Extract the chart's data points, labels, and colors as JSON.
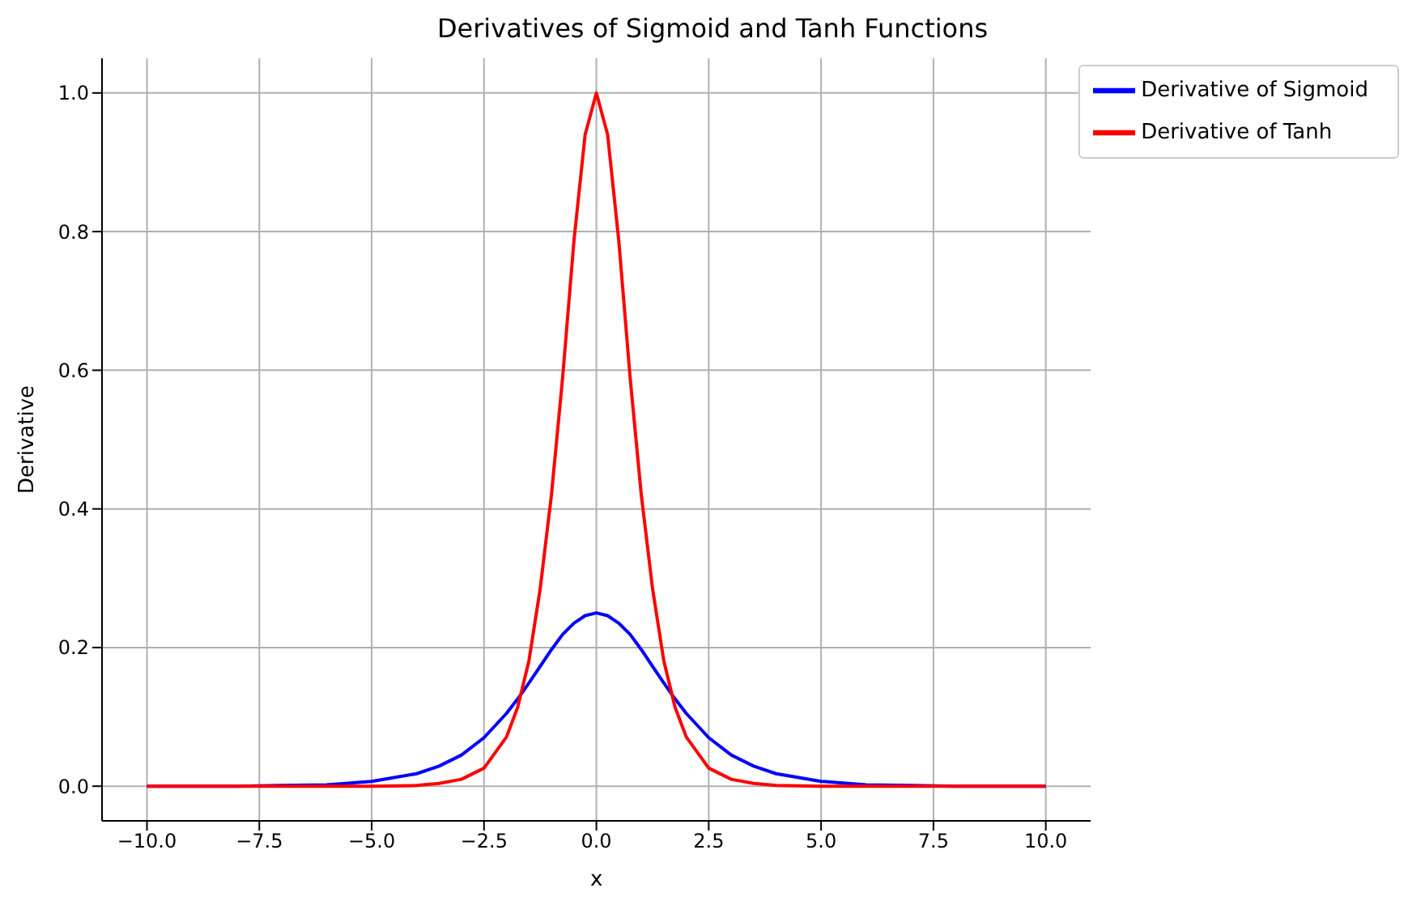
{
  "chart_data": {
    "type": "line",
    "title": "Derivatives of Sigmoid and Tanh Functions",
    "xlabel": "x",
    "ylabel": "Derivative",
    "x": [
      -10,
      -8,
      -7,
      -6,
      -5,
      -4,
      -3.5,
      -3,
      -2.5,
      -2,
      -1.75,
      -1.5,
      -1.25,
      -1,
      -0.75,
      -0.5,
      -0.25,
      0,
      0.25,
      0.5,
      0.75,
      1,
      1.25,
      1.5,
      1.75,
      2,
      2.5,
      3,
      3.5,
      4,
      5,
      6,
      7,
      8,
      10
    ],
    "series": [
      {
        "name": "Derivative of Sigmoid",
        "color": "#0000ff",
        "values": [
          0,
          0,
          0.001,
          0.002,
          0.007,
          0.018,
          0.029,
          0.045,
          0.07,
          0.105,
          0.126,
          0.149,
          0.173,
          0.197,
          0.219,
          0.235,
          0.246,
          0.25,
          0.246,
          0.235,
          0.219,
          0.197,
          0.173,
          0.149,
          0.126,
          0.105,
          0.07,
          0.045,
          0.029,
          0.018,
          0.007,
          0.002,
          0.001,
          0,
          0
        ]
      },
      {
        "name": "Derivative of Tanh",
        "color": "#ff0000",
        "values": [
          0,
          0,
          0,
          0,
          0,
          0.001,
          0.004,
          0.01,
          0.026,
          0.071,
          0.114,
          0.181,
          0.285,
          0.42,
          0.59,
          0.786,
          0.94,
          1,
          0.94,
          0.786,
          0.59,
          0.42,
          0.285,
          0.181,
          0.114,
          0.071,
          0.026,
          0.01,
          0.004,
          0.001,
          0,
          0,
          0,
          0,
          0
        ]
      }
    ],
    "xlim": [
      -11,
      11
    ],
    "xticks": [
      {
        "value": -10,
        "label": "−10.0"
      },
      {
        "value": -7.5,
        "label": "−7.5"
      },
      {
        "value": -5,
        "label": "−5.0"
      },
      {
        "value": -2.5,
        "label": "−2.5"
      },
      {
        "value": 0,
        "label": "0.0"
      },
      {
        "value": 2.5,
        "label": "2.5"
      },
      {
        "value": 5,
        "label": "5.0"
      },
      {
        "value": 7.5,
        "label": "7.5"
      },
      {
        "value": 10,
        "label": "10.0"
      }
    ],
    "ylim": [
      -0.05,
      1.05
    ],
    "yticks": [
      {
        "value": 0,
        "label": "0.0"
      },
      {
        "value": 0.2,
        "label": "0.2"
      },
      {
        "value": 0.4,
        "label": "0.4"
      },
      {
        "value": 0.6,
        "label": "0.6"
      },
      {
        "value": 0.8,
        "label": "0.8"
      },
      {
        "value": 1,
        "label": "1.0"
      }
    ],
    "grid": true,
    "legend": "top right",
    "marker": "none",
    "line_style": "solid"
  }
}
